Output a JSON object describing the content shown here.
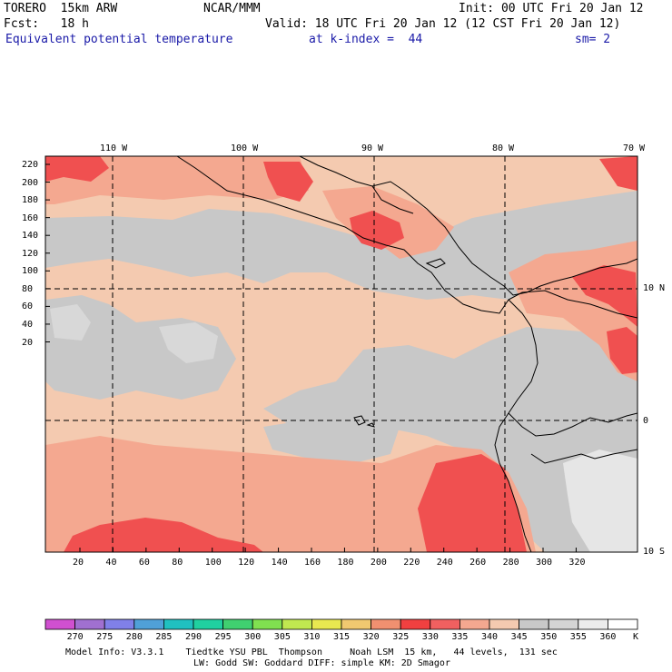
{
  "header": {
    "model": "TORERO  15km ARW",
    "center": "NCAR/MMM",
    "init": "Init: 00 UTC Fri 20 Jan 12",
    "fcst": "Fcst:   18 h",
    "valid": "Valid: 18 UTC Fri 20 Jan 12 (12 CST Fri 20 Jan 12)",
    "field": "Equivalent potential temperature",
    "level": "at k-index =  44",
    "smooth": "sm= 2"
  },
  "map": {
    "top_labels": [
      "110 W",
      "100 W",
      "90 W",
      "80 W",
      "70 W"
    ],
    "right_labels": [
      "10 N",
      "0",
      "10 S"
    ],
    "y_ticks": [
      "220",
      "200",
      "180",
      "160",
      "140",
      "120",
      "100",
      "80",
      "60",
      "40",
      "20"
    ],
    "x_ticks": [
      "20",
      "40",
      "60",
      "80",
      "100",
      "120",
      "140",
      "160",
      "180",
      "200",
      "220",
      "240",
      "260",
      "280",
      "300",
      "320"
    ]
  },
  "colorbar": {
    "labels": [
      "270",
      "275",
      "280",
      "285",
      "290",
      "295",
      "300",
      "305",
      "310",
      "315",
      "320",
      "325",
      "330",
      "335",
      "340",
      "345",
      "350",
      "355",
      "360"
    ],
    "unit": "K",
    "colors": [
      "#d050d0",
      "#a070d0",
      "#8080e8",
      "#50a0d8",
      "#20c0c0",
      "#20d0a0",
      "#40d070",
      "#80e050",
      "#c0e850",
      "#e8e850",
      "#f0c870",
      "#f09070",
      "#f04040",
      "#f06060",
      "#f4a890",
      "#f4cab0",
      "#c8c8c8",
      "#d4d4d4",
      "#ececec",
      "#ffffff"
    ]
  },
  "footer": {
    "line1": "Model Info: V3.3.1    Tiedtke YSU PBL  Thompson     Noah LSM  15 km,   44 levels,  131 sec",
    "line2": "LW: Godd SW: Goddard DIFF: simple KM: 2D Smagor"
  },
  "fill_colors": {
    "base": "#f4cab0",
    "grey": "#c8c8c8",
    "light_grey": "#d8d8d8",
    "salmon": "#f4a890",
    "red": "#f05050"
  }
}
